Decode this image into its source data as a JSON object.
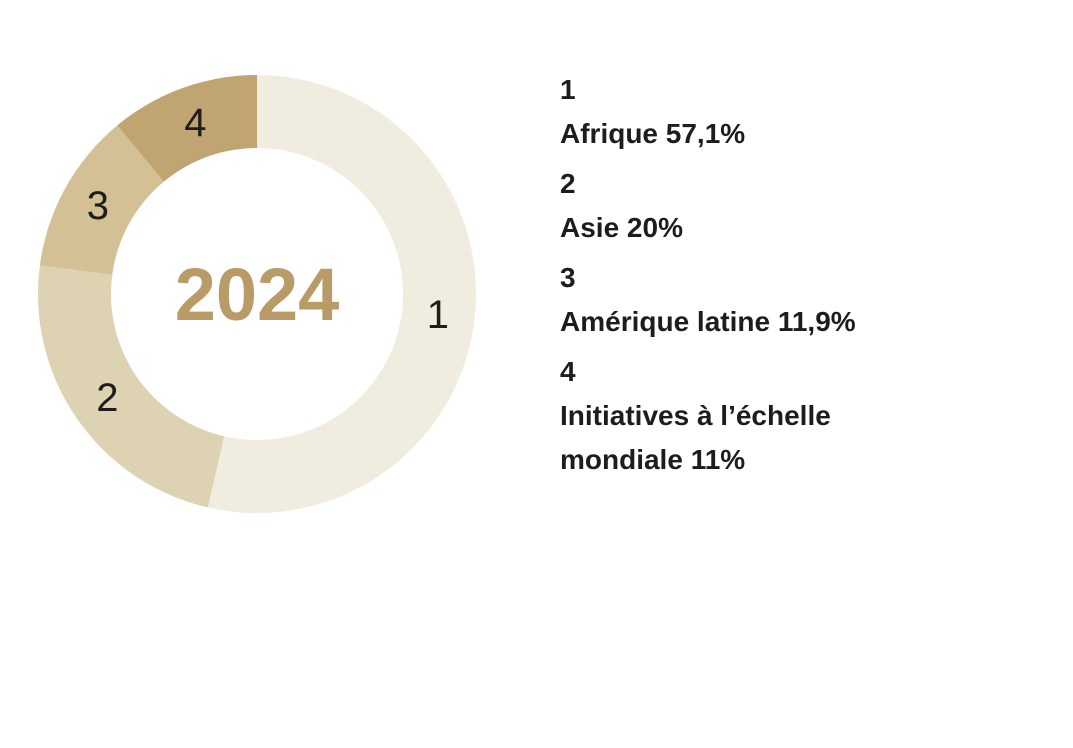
{
  "page": {
    "background_color": "#ffffff",
    "text_color": "#1d1d1b"
  },
  "chart_data": {
    "type": "pie",
    "subtype": "donut",
    "title": "",
    "center_label": "2024",
    "center_label_color": "#b89b66",
    "label_text_color": "#1d1d1b",
    "legend_position": "right",
    "categories": [
      "Afrique",
      "Asie",
      "Amérique latine",
      "Initiatives à l’échelle mondiale"
    ],
    "values": [
      57.1,
      20,
      11.9,
      11
    ],
    "segments": [
      {
        "index": "1",
        "name": "Afrique",
        "value": 57.1,
        "percent_display": "57,1%",
        "legend_label": "Afrique 57,1%",
        "color": "#f0ecdf"
      },
      {
        "index": "2",
        "name": "Asie",
        "value": 20,
        "percent_display": "20%",
        "legend_label": "Asie 20%",
        "color": "#ddd2b2"
      },
      {
        "index": "3",
        "name": "Amérique latine",
        "value": 11.9,
        "percent_display": "11,9%",
        "legend_label": "Amérique latine 11,9%",
        "color": "#d3c095"
      },
      {
        "index": "4",
        "name": "Initiatives à l’échelle mondiale",
        "value": 11,
        "percent_display": "11%",
        "legend_label": "Initiatives à l’échelle mondiale 11%",
        "color": "#c0a472"
      }
    ]
  }
}
